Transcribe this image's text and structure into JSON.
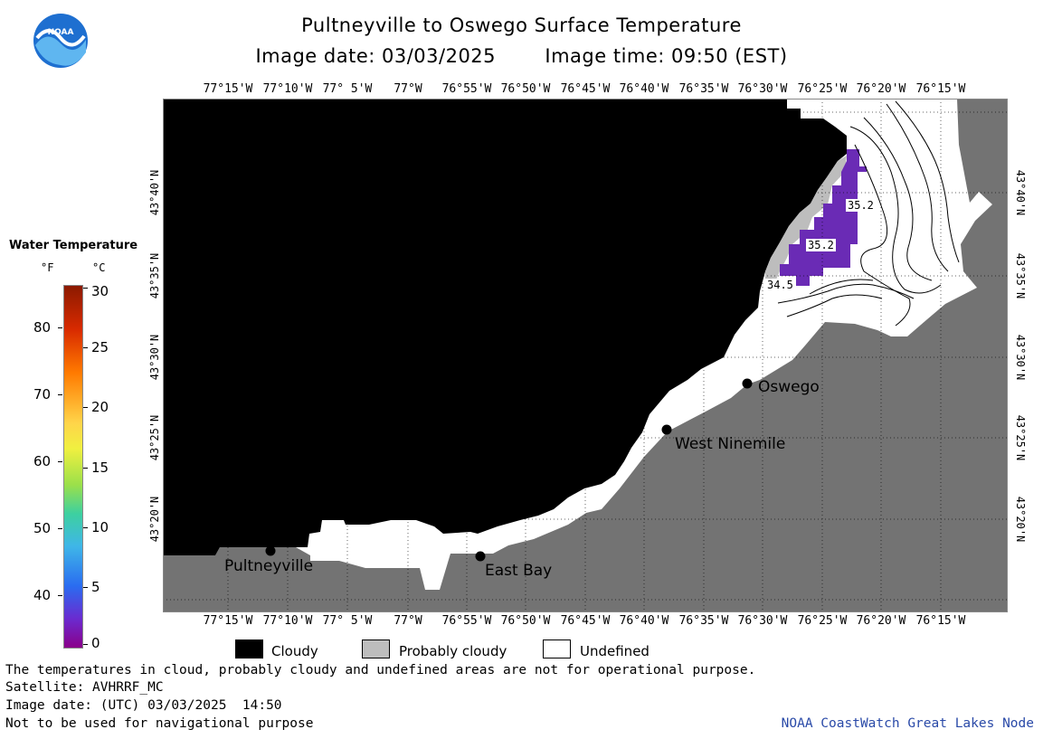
{
  "header": {
    "title": "Pultneyville to Oswego Surface Temperature",
    "image_date_label": "Image date: 03/03/2025",
    "image_time_label": "Image time: 09:50 (EST)",
    "logo_text": "NOAA"
  },
  "longitude_labels": [
    "77°15'W",
    "77°10'W",
    "77° 5'W",
    "77°W",
    "76°55'W",
    "76°50'W",
    "76°45'W",
    "76°40'W",
    "76°35'W",
    "76°30'W",
    "76°25'W",
    "76°20'W",
    "76°15'W"
  ],
  "latitude_labels": [
    "43°40'N",
    "43°35'N",
    "43°30'N",
    "43°25'N",
    "43°20'N"
  ],
  "places": {
    "oswego": "Oswego",
    "west_ninemile": "West Ninemile",
    "pultneyville": "Pultneyville",
    "east_bay": "East Bay"
  },
  "temperature_labels": [
    "35.2",
    "35.2",
    "34.5"
  ],
  "legend": {
    "title": "Water Temperature",
    "unit_f": "°F",
    "unit_c": "°C",
    "fahrenheit_ticks": [
      "80",
      "70",
      "60",
      "50",
      "40"
    ],
    "celsius_ticks": [
      "30",
      "25",
      "20",
      "15",
      "10",
      "5",
      "0"
    ]
  },
  "categories": {
    "cloudy": "Cloudy",
    "probably_cloudy": "Probably cloudy",
    "undefined": "Undefined"
  },
  "notes": {
    "disclaimer": "The temperatures in cloud, probably cloudy and undefined areas are not for operational purpose.",
    "satellite": "Satellite: AVHRRF_MC",
    "image_date_utc": "Image date: (UTC) 03/03/2025  14:50",
    "navigation": "Not to be used for navigational purpose",
    "credit": "NOAA CoastWatch Great Lakes Node"
  },
  "colors": {
    "cloudy": "#000000",
    "probably_cloudy": "#bdbdbd",
    "undefined": "#ffffff",
    "land": "#737373",
    "warm_water": "#6a2bb5"
  }
}
